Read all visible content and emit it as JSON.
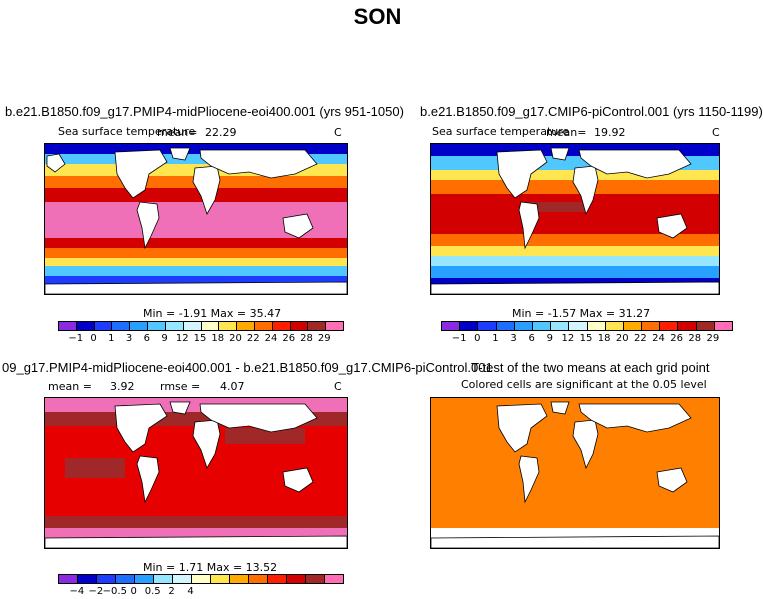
{
  "figure_title": "SON",
  "chart_data": [
    {
      "type": "heatmap",
      "panel": "top-left",
      "title": "b.e21.B1850.f09_g17.PMIP4-midPliocene-eoi400.001 (yrs 951-1050)",
      "variable": "Sea surface temperature",
      "mean_label": "mean=",
      "mean": "22.29",
      "units": "C",
      "min_max": "Min =  -1.91 Max =  35.47",
      "colorbar_ticks": [
        "-1",
        "0",
        "1",
        "3",
        "6",
        "9",
        "12",
        "15",
        "18",
        "20",
        "22",
        "24",
        "26",
        "28",
        "29"
      ],
      "colors": [
        "#8a2be2",
        "#0000c8",
        "#1e3cff",
        "#1e6eff",
        "#28a0ff",
        "#50c8ff",
        "#96e6ff",
        "#d2f5ff",
        "#ffffc8",
        "#ffe650",
        "#ffaa00",
        "#ff6e00",
        "#ff1e00",
        "#d20000",
        "#a02828",
        "#ff6eb4"
      ]
    },
    {
      "type": "heatmap",
      "panel": "top-right",
      "title": "b.e21.B1850.f09_g17.CMIP6-piControl.001 (yrs 1150-1199)",
      "variable": "Sea surface temperature",
      "mean_label": "mean=",
      "mean": "19.92",
      "units": "C",
      "min_max": "Min =  -1.57 Max =  31.27",
      "colorbar_ticks": [
        "-1",
        "0",
        "1",
        "3",
        "6",
        "9",
        "12",
        "15",
        "18",
        "20",
        "22",
        "24",
        "26",
        "28",
        "29"
      ],
      "colors": [
        "#8a2be2",
        "#0000c8",
        "#1e3cff",
        "#1e6eff",
        "#28a0ff",
        "#50c8ff",
        "#96e6ff",
        "#d2f5ff",
        "#ffffc8",
        "#ffe650",
        "#ffaa00",
        "#ff6e00",
        "#ff1e00",
        "#d20000",
        "#a02828",
        "#ff6eb4"
      ]
    },
    {
      "type": "heatmap",
      "panel": "bottom-left",
      "title": "09_g17.PMIP4-midPliocene-eoi400.001 - b.e21.B1850.f09_g17.CMIP6-piControl.001",
      "mean_label": "mean =",
      "mean": "3.92",
      "rmse_label": "rmse =",
      "rmse": "4.07",
      "units": "C",
      "min_max": "Min =   1.71 Max =  13.52",
      "colorbar_ticks": [
        "-4",
        "-2",
        "-0.5",
        "0",
        "0.5",
        "2",
        "4"
      ],
      "colors": [
        "#8a2be2",
        "#0000c8",
        "#1e3cff",
        "#1e6eff",
        "#28a0ff",
        "#96e6ff",
        "#d2f5ff",
        "#ffffc8",
        "#ffe650",
        "#ffaa00",
        "#ff6e00",
        "#ff1e00",
        "#d20000",
        "#a02828",
        "#ff6eb4"
      ]
    },
    {
      "type": "heatmap",
      "panel": "bottom-right",
      "title": "T-test of the two means at each grid point",
      "subtitle": "Colored cells are significant at the 0.05 level",
      "colors": [
        "#ff7f00"
      ]
    }
  ]
}
